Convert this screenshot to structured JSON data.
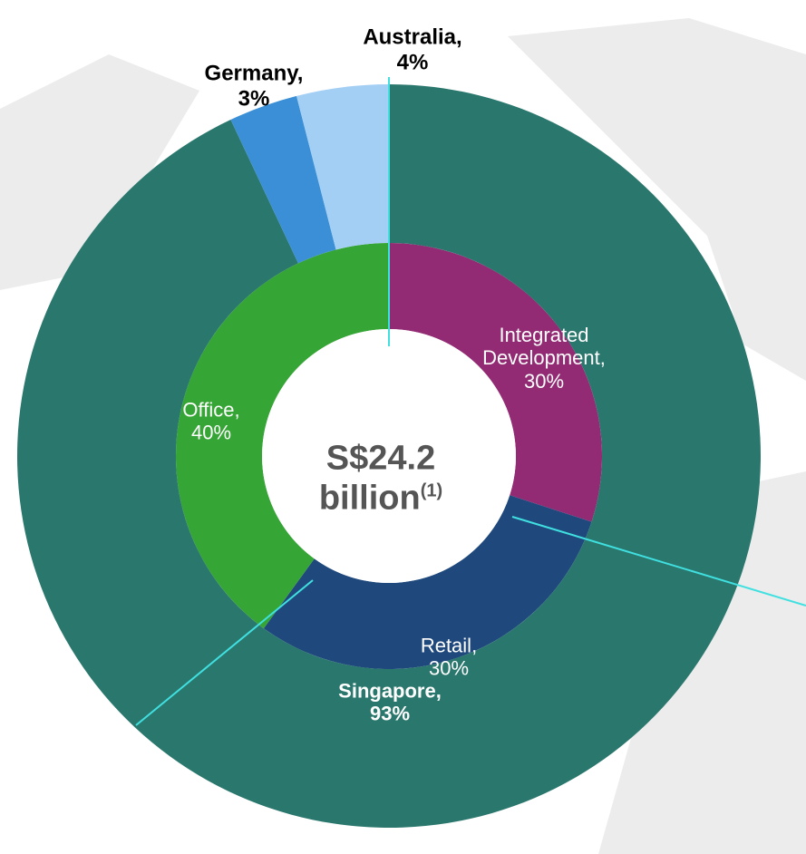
{
  "chart_data": {
    "type": "donut",
    "center_text": [
      "S$24.2",
      "billion"
    ],
    "center_note": "(1)",
    "rings": [
      {
        "categories": [
          "Integrated Development",
          "Retail",
          "Office"
        ],
        "values": [
          30,
          30,
          40
        ],
        "value_labels": [
          "Integrated\nDevelopment,\n30%",
          "Retail,\n30%",
          "Office,\n40%"
        ],
        "colors": [
          "#922b73",
          "#1f497d",
          "#35a535"
        ]
      },
      {
        "categories": [
          "Singapore",
          "Germany",
          "Australia"
        ],
        "values": [
          93,
          3,
          4
        ],
        "value_labels": [
          "Singapore,\n93%",
          "Germany,\n3%",
          "Australia,\n4%"
        ],
        "colors": [
          "#2a776d",
          "#3a8fd6",
          "#a3cff5"
        ]
      }
    ]
  }
}
